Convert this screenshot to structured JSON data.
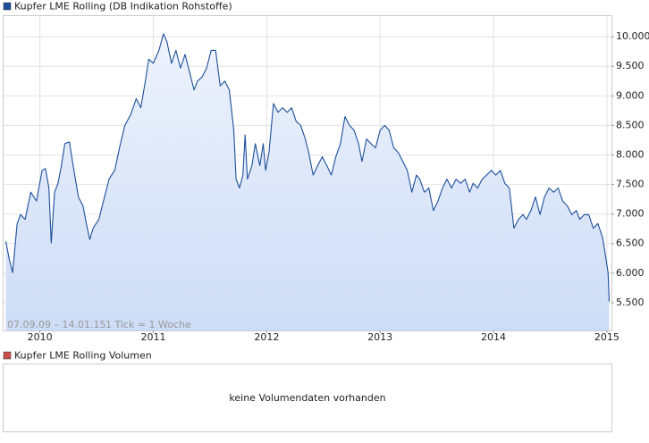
{
  "chart_data": {
    "type": "line",
    "series": [
      {
        "name": "Kupfer LME Rolling (DB Indikation Rohstoffe)",
        "color": "#1c4f9c",
        "values": [
          6540,
          6240,
          6010,
          6840,
          6990,
          6910,
          7370,
          7220,
          7740,
          7770,
          7440,
          6510,
          7370,
          7520,
          7820,
          8190,
          8220,
          7740,
          7290,
          7140,
          6840,
          6570,
          6760,
          6910,
          7290,
          7590,
          7740,
          8190,
          8500,
          8680,
          8950,
          8800,
          9250,
          9620,
          9550,
          9770,
          10050,
          9920,
          9550,
          9770,
          9470,
          9700,
          9400,
          9100,
          9250,
          9320,
          9470,
          9770,
          9770,
          9170,
          9250,
          9100,
          8420,
          7590,
          7440,
          7660,
          8340,
          7590,
          7820,
          8190,
          7820,
          8190,
          7740,
          8040,
          8870,
          8720,
          8800,
          8720,
          8800,
          8570,
          8500,
          8270,
          8040,
          7660,
          7820,
          7970,
          7820,
          7660,
          7970,
          8190,
          8650,
          8500,
          8420,
          8190,
          7890,
          8270,
          8190,
          8120,
          8420,
          8500,
          8420,
          8120,
          8040,
          7890,
          7740,
          7370,
          7660,
          7590,
          7370,
          7440,
          7060,
          7220,
          7440,
          7590,
          7440,
          7590,
          7520,
          7590,
          7370,
          7520,
          7440,
          7590,
          7660,
          7740,
          7660,
          7740,
          7520,
          7440,
          6760,
          6910,
          6990,
          6910,
          7060,
          7290,
          6990,
          7290,
          7440,
          7370,
          7440,
          7220,
          7140,
          6990,
          7060,
          6910,
          6990,
          6990,
          6760,
          6840,
          6610,
          6390,
          6010,
          5520
        ]
      }
    ],
    "x": [
      2009.7,
      2009.73,
      2009.76,
      2009.8,
      2009.83,
      2009.87,
      2009.92,
      2009.97,
      2010.02,
      2010.05,
      2010.08,
      2010.1,
      2010.13,
      2010.16,
      2010.19,
      2010.22,
      2010.26,
      2010.3,
      2010.34,
      2010.38,
      2010.41,
      2010.44,
      2010.47,
      2010.52,
      2010.57,
      2010.61,
      2010.66,
      2010.71,
      2010.75,
      2010.8,
      2010.85,
      2010.89,
      2010.93,
      2010.96,
      2011.0,
      2011.05,
      2011.09,
      2011.12,
      2011.16,
      2011.2,
      2011.24,
      2011.28,
      2011.32,
      2011.36,
      2011.39,
      2011.43,
      2011.47,
      2011.51,
      2011.55,
      2011.59,
      2011.63,
      2011.67,
      2011.71,
      2011.73,
      2011.76,
      2011.79,
      2011.81,
      2011.83,
      2011.87,
      2011.9,
      2011.94,
      2011.97,
      2011.99,
      2012.02,
      2012.06,
      2012.1,
      2012.14,
      2012.18,
      2012.22,
      2012.26,
      2012.3,
      2012.34,
      2012.37,
      2012.41,
      2012.45,
      2012.49,
      2012.53,
      2012.57,
      2012.61,
      2012.65,
      2012.69,
      2012.73,
      2012.77,
      2012.81,
      2012.84,
      2012.88,
      2012.92,
      2012.96,
      2013.0,
      2013.04,
      2013.08,
      2013.12,
      2013.16,
      2013.2,
      2013.24,
      2013.28,
      2013.32,
      2013.35,
      2013.39,
      2013.43,
      2013.47,
      2013.51,
      2013.55,
      2013.59,
      2013.63,
      2013.67,
      2013.71,
      2013.75,
      2013.79,
      2013.82,
      2013.86,
      2013.9,
      2013.94,
      2013.98,
      2014.02,
      2014.06,
      2014.1,
      2014.14,
      2014.18,
      2014.22,
      2014.26,
      2014.29,
      2014.33,
      2014.37,
      2014.41,
      2014.45,
      2014.49,
      2014.53,
      2014.57,
      2014.61,
      2014.65,
      2014.69,
      2014.73,
      2014.76,
      2014.8,
      2014.84,
      2014.88,
      2014.92,
      2014.96,
      2014.98,
      2015.01,
      2015.02
    ],
    "xlim": [
      2009.68,
      2015.04
    ],
    "xticks": [
      2010,
      2011,
      2012,
      2013,
      2014,
      2015
    ],
    "ylim": [
      5030,
      10350
    ],
    "yticks": [
      {
        "value": 5500,
        "label": "5.500"
      },
      {
        "value": 6000,
        "label": "6.000"
      },
      {
        "value": 6500,
        "label": "6.500"
      },
      {
        "value": 7000,
        "label": "7.000"
      },
      {
        "value": 7500,
        "label": "7.500"
      },
      {
        "value": 8000,
        "label": "8.000"
      },
      {
        "value": 8500,
        "label": "8.500"
      },
      {
        "value": 9000,
        "label": "9.000"
      },
      {
        "value": 9500,
        "label": "9.500"
      },
      {
        "value": 10000,
        "label": "10.000"
      }
    ],
    "grid": true,
    "annotations": [
      "07.09.09 – 14.01.15",
      "1 Tick = 1 Woche"
    ]
  },
  "volume_panel": {
    "legend": "Kupfer LME Rolling Volumen",
    "color": "#c8504f",
    "message": "keine Volumendaten vorhanden"
  }
}
